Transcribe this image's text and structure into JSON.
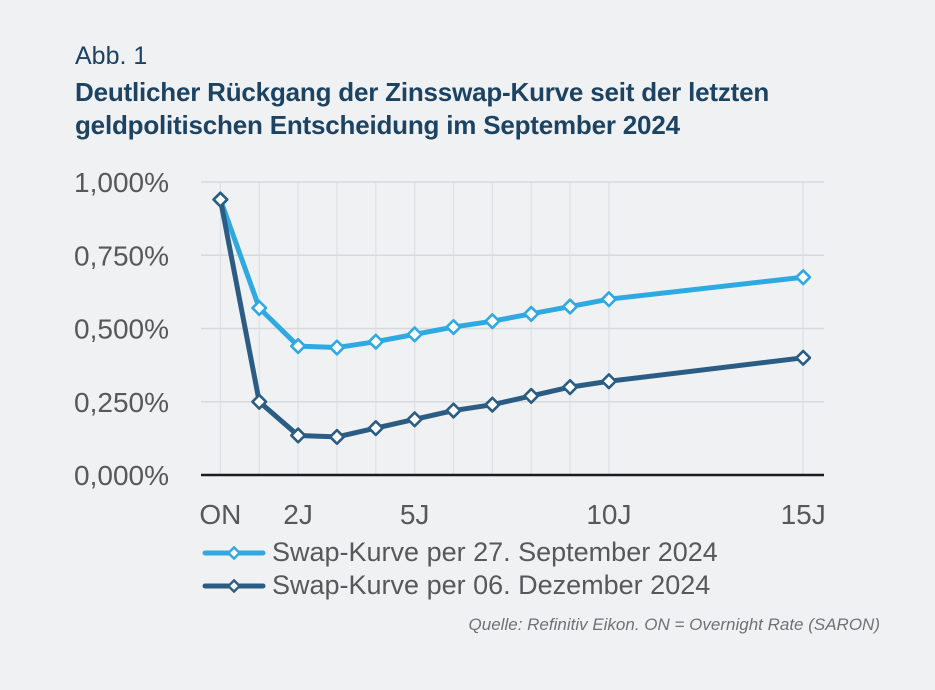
{
  "figure": {
    "label": "Abb. 1",
    "title_line1": "Deutlicher Rückgang der Zinsswap-Kurve seit der letzten",
    "title_line2": "geldpolitischen Entscheidung im September 2024",
    "source_note": "Quelle: Refinitiv Eikon. ON = Overnight Rate (SARON)"
  },
  "colors": {
    "background": "#eff1f3",
    "title_text": "#1d4363",
    "axis_text": "#58585a",
    "legend_text": "#58585a",
    "source_text": "#717175",
    "grid_horizontal": "#d7dadc",
    "grid_vertical": "#e0e3e5",
    "axis_line": "#1b1b1b",
    "marker_fill": "#fcfdfe"
  },
  "chart_data": {
    "type": "line",
    "marker": "diamond",
    "grid": true,
    "legend_position": "bottom-left",
    "x_unit": "maturity in years (ON plotted at 0)",
    "x": [
      0,
      1,
      2,
      3,
      4,
      5,
      6,
      7,
      8,
      9,
      10,
      15
    ],
    "x_ticks": [
      {
        "value": 0,
        "label": "ON"
      },
      {
        "value": 2,
        "label": "2J"
      },
      {
        "value": 5,
        "label": "5J"
      },
      {
        "value": 10,
        "label": "10J"
      },
      {
        "value": 15,
        "label": "15J"
      }
    ],
    "y_ticks": [
      {
        "value": 0,
        "label": "0,000%"
      },
      {
        "value": 0.25,
        "label": "0,250%"
      },
      {
        "value": 0.5,
        "label": "0,500%"
      },
      {
        "value": 0.75,
        "label": "0,750%"
      },
      {
        "value": 1,
        "label": "1,000%"
      }
    ],
    "ylim": [
      0,
      1.0
    ],
    "xlim": [
      0,
      15
    ],
    "series": [
      {
        "name": "Swap-Kurve per 27. September 2024",
        "color": "#2fa9e1",
        "values": [
          0.94,
          0.57,
          0.44,
          0.435,
          0.455,
          0.48,
          0.505,
          0.525,
          0.55,
          0.575,
          0.6,
          0.675
        ]
      },
      {
        "name": "Swap-Kurve per 06. Dezember 2024",
        "color": "#2b5c84",
        "values": [
          0.94,
          0.25,
          0.135,
          0.13,
          0.16,
          0.19,
          0.22,
          0.24,
          0.27,
          0.3,
          0.32,
          0.4
        ]
      }
    ]
  }
}
